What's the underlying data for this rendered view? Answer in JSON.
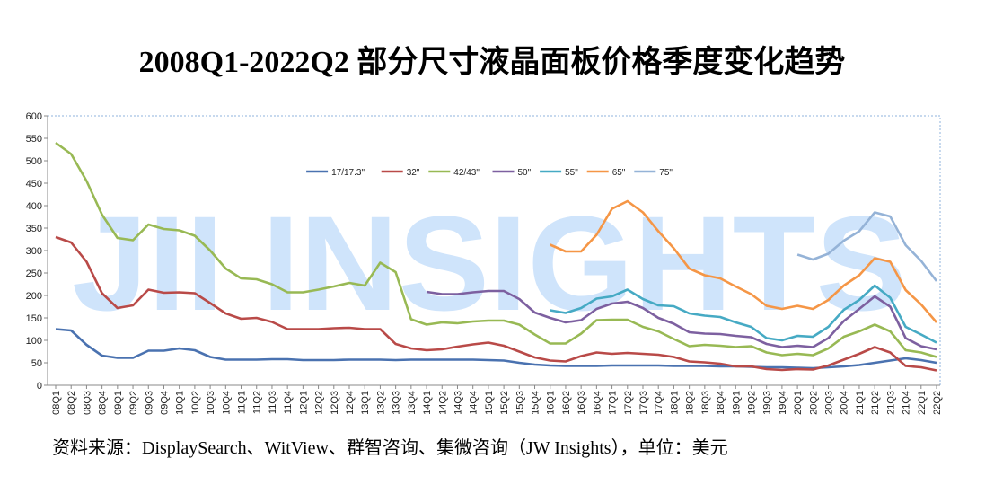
{
  "chart_data": {
    "type": "line",
    "title": "2008Q1-2022Q2 部分尺寸液晶面板价格季度变化趋势",
    "source": "资料来源：DisplaySearch、WitView、群智咨询、集微咨询（JW Insights），单位：美元",
    "watermark": "JII INSIGHTS",
    "categories": [
      "08Q1",
      "08Q2",
      "08Q3",
      "08Q4",
      "09Q1",
      "09Q2",
      "09Q3",
      "09Q4",
      "10Q1",
      "10Q2",
      "10Q3",
      "10Q4",
      "11Q1",
      "11Q2",
      "11Q3",
      "11Q4",
      "12Q1",
      "12Q2",
      "12Q3",
      "12Q4",
      "13Q1",
      "13Q2",
      "13Q3",
      "13Q4",
      "14Q1",
      "14Q2",
      "14Q3",
      "14Q4",
      "15Q1",
      "15Q2",
      "15Q3",
      "15Q4",
      "16Q1",
      "16Q2",
      "16Q3",
      "16Q4",
      "17Q1",
      "17Q2",
      "17Q3",
      "17Q4",
      "18Q1",
      "18Q2",
      "18Q3",
      "18Q4",
      "19Q1",
      "19Q2",
      "19Q3",
      "19Q4",
      "20Q1",
      "20Q2",
      "20Q3",
      "20Q4",
      "21Q1",
      "21Q2",
      "21Q3",
      "21Q4",
      "22Q1",
      "22Q2"
    ],
    "series": [
      {
        "name": "17/17.3\"",
        "color": "#4a72b0",
        "values": [
          125,
          122,
          90,
          66,
          61,
          61,
          77,
          77,
          82,
          78,
          63,
          57,
          57,
          57,
          58,
          58,
          56,
          56,
          56,
          57,
          57,
          57,
          56,
          57,
          57,
          57,
          57,
          57,
          56,
          55,
          50,
          46,
          44,
          43,
          43,
          43,
          44,
          44,
          44,
          44,
          43,
          43,
          43,
          42,
          42,
          41,
          40,
          40,
          39,
          38,
          40,
          42,
          45,
          50,
          55,
          60,
          56,
          50
        ]
      },
      {
        "name": "32\"",
        "color": "#b94a48",
        "values": [
          330,
          318,
          275,
          205,
          172,
          178,
          213,
          206,
          207,
          205,
          183,
          160,
          148,
          150,
          141,
          125,
          125,
          125,
          127,
          128,
          125,
          125,
          92,
          82,
          78,
          80,
          86,
          91,
          95,
          88,
          75,
          62,
          55,
          53,
          65,
          73,
          70,
          72,
          70,
          68,
          63,
          53,
          51,
          48,
          42,
          42,
          36,
          34,
          36,
          35,
          44,
          57,
          70,
          85,
          73,
          43,
          40,
          33
        ]
      },
      {
        "name": "42/43\"",
        "color": "#98b954",
        "values": [
          540,
          515,
          455,
          380,
          328,
          323,
          358,
          348,
          345,
          333,
          300,
          260,
          238,
          236,
          225,
          207,
          207,
          213,
          220,
          228,
          222,
          273,
          252,
          147,
          135,
          140,
          138,
          142,
          144,
          144,
          135,
          113,
          93,
          93,
          115,
          145,
          146,
          146,
          130,
          120,
          103,
          87,
          90,
          88,
          85,
          87,
          73,
          67,
          70,
          67,
          82,
          108,
          120,
          135,
          120,
          78,
          73,
          63
        ]
      },
      {
        "name": "50\"",
        "color": "#7d60a0",
        "values": [
          null,
          null,
          null,
          null,
          null,
          null,
          null,
          null,
          null,
          null,
          null,
          null,
          null,
          null,
          null,
          null,
          null,
          null,
          null,
          null,
          null,
          null,
          null,
          null,
          208,
          203,
          203,
          207,
          210,
          210,
          192,
          162,
          150,
          140,
          145,
          170,
          182,
          186,
          172,
          150,
          137,
          118,
          115,
          114,
          110,
          107,
          92,
          85,
          88,
          85,
          105,
          143,
          170,
          198,
          175,
          105,
          87,
          80
        ]
      },
      {
        "name": "55\"",
        "color": "#46aac4",
        "values": [
          null,
          null,
          null,
          null,
          null,
          null,
          null,
          null,
          null,
          null,
          null,
          null,
          null,
          null,
          null,
          null,
          null,
          null,
          null,
          null,
          null,
          null,
          null,
          null,
          null,
          null,
          null,
          null,
          null,
          null,
          null,
          null,
          167,
          161,
          172,
          193,
          198,
          213,
          192,
          178,
          176,
          160,
          155,
          152,
          140,
          130,
          105,
          100,
          110,
          108,
          130,
          168,
          190,
          222,
          195,
          130,
          113,
          95
        ]
      },
      {
        "name": "65\"",
        "color": "#f59646",
        "values": [
          null,
          null,
          null,
          null,
          null,
          null,
          null,
          null,
          null,
          null,
          null,
          null,
          null,
          null,
          null,
          null,
          null,
          null,
          null,
          null,
          null,
          null,
          null,
          null,
          null,
          null,
          null,
          null,
          null,
          null,
          null,
          null,
          313,
          298,
          298,
          335,
          393,
          410,
          385,
          343,
          305,
          260,
          245,
          238,
          220,
          203,
          177,
          170,
          177,
          170,
          190,
          222,
          245,
          283,
          275,
          212,
          180,
          140
        ]
      },
      {
        "name": "75\"",
        "color": "#95b3d7",
        "values": [
          null,
          null,
          null,
          null,
          null,
          null,
          null,
          null,
          null,
          null,
          null,
          null,
          null,
          null,
          null,
          null,
          null,
          null,
          null,
          null,
          null,
          null,
          null,
          null,
          null,
          null,
          null,
          null,
          null,
          null,
          null,
          null,
          null,
          null,
          null,
          null,
          null,
          null,
          null,
          null,
          null,
          null,
          null,
          null,
          null,
          null,
          null,
          null,
          291,
          280,
          293,
          322,
          343,
          385,
          376,
          312,
          277,
          232
        ]
      }
    ],
    "ylim": [
      0,
      600
    ],
    "yticks": [
      0,
      50,
      100,
      150,
      200,
      250,
      300,
      350,
      400,
      450,
      500,
      550,
      600
    ],
    "legend": "upper center"
  }
}
